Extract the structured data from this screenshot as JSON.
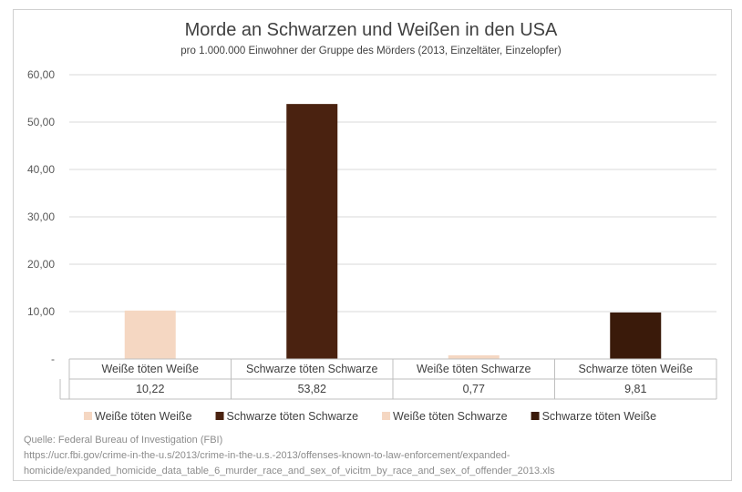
{
  "chart_data": {
    "type": "bar",
    "title": "Morde an Schwarzen und Weißen in den USA",
    "subtitle": "pro 1.000.000 Einwohner der Gruppe des Mörders (2013, Einzeltäter, Einzelopfer)",
    "categories": [
      "Weiße töten Weiße",
      "Schwarze töten Schwarze",
      "Weiße töten Schwarze",
      "Schwarze töten Weiße"
    ],
    "values": [
      10.22,
      53.82,
      0.77,
      9.81
    ],
    "value_labels": [
      "10,22",
      "53,82",
      "0,77",
      "9,81"
    ],
    "y_ticks": [
      "-",
      "10,00",
      "20,00",
      "30,00",
      "40,00",
      "50,00",
      "60,00"
    ],
    "ylim": [
      0,
      60
    ],
    "grid": true,
    "legend_position": "bottom",
    "colors": [
      "#f5d7c2",
      "#4a2210",
      "#f5d7c2",
      "#3a1a0a"
    ],
    "data_table": true
  },
  "source": {
    "line1": "Quelle: Federal Bureau of Investigation (FBI)",
    "line2": "https://ucr.fbi.gov/crime-in-the-u.s/2013/crime-in-the-u.s.-2013/offenses-known-to-law-enforcement/expanded-",
    "line3": "homicide/expanded_homicide_data_table_6_murder_race_and_sex_of_vicitm_by_race_and_sex_of_offender_2013.xls"
  }
}
